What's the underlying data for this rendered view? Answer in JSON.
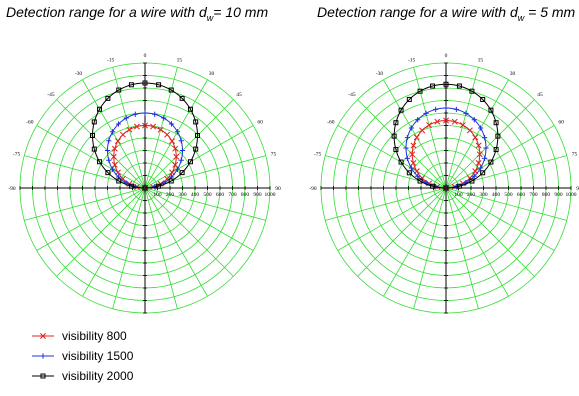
{
  "charts": [
    {
      "title_text": "Detection range for a wire with d",
      "title_sub": "w",
      "title_tail": "= 10 mm"
    },
    {
      "title_text": "Detection range for a wire with d",
      "title_sub": "w",
      "title_tail": " = 5 mm"
    }
  ],
  "colors": {
    "grid": "#33dd33",
    "axis": "#000000",
    "visibility_800": "#e02020",
    "visibility_1500": "#2030e0",
    "visibility_2000": "#000000"
  },
  "chart_data": [
    {
      "type": "polar-line",
      "title": "Detection range for a wire with dw= 10 mm",
      "angle_ticks": [
        -90,
        -75,
        -60,
        -45,
        -30,
        -15,
        0,
        15,
        30,
        45,
        60,
        75,
        90
      ],
      "radial_ticks": [
        100,
        200,
        300,
        400,
        500,
        600,
        700,
        800,
        900,
        1000
      ],
      "rlim": [
        0,
        1000
      ],
      "theta_range": [
        -90,
        90
      ],
      "series": [
        {
          "name": "visibility 800",
          "marker": "x",
          "shape": "circle-tangent",
          "max_range": 500
        },
        {
          "name": "visibility 1500",
          "marker": "+",
          "shape": "circle-tangent",
          "max_range": 600
        },
        {
          "name": "visibility 2000",
          "marker": "square",
          "shape": "circle-tangent",
          "max_range": 840
        }
      ],
      "legend": "bottom-left"
    },
    {
      "type": "polar-line",
      "title": "Detection range for a wire with dw = 5 mm",
      "angle_ticks": [
        -90,
        -75,
        -60,
        -45,
        -30,
        -15,
        0,
        15,
        30,
        45,
        60,
        75,
        90
      ],
      "radial_ticks": [
        100,
        200,
        300,
        400,
        500,
        600,
        700,
        800,
        900,
        1000
      ],
      "rlim": [
        0,
        1000
      ],
      "theta_range": [
        -90,
        90
      ],
      "series": [
        {
          "name": "visibility 800",
          "marker": "x",
          "shape": "circle-tangent",
          "max_range": 540
        },
        {
          "name": "visibility 1500",
          "marker": "+",
          "shape": "circle-tangent",
          "max_range": 640
        },
        {
          "name": "visibility 2000",
          "marker": "square",
          "shape": "circle-tangent",
          "max_range": 830
        }
      ],
      "legend": "bottom-left"
    }
  ],
  "legend": [
    {
      "label": "visibility 800",
      "marker": "x",
      "color_key": "visibility_800"
    },
    {
      "label": "visibility 1500",
      "marker": "+",
      "color_key": "visibility_1500"
    },
    {
      "label": "visibility 2000",
      "marker": "square",
      "color_key": "visibility_2000"
    }
  ]
}
